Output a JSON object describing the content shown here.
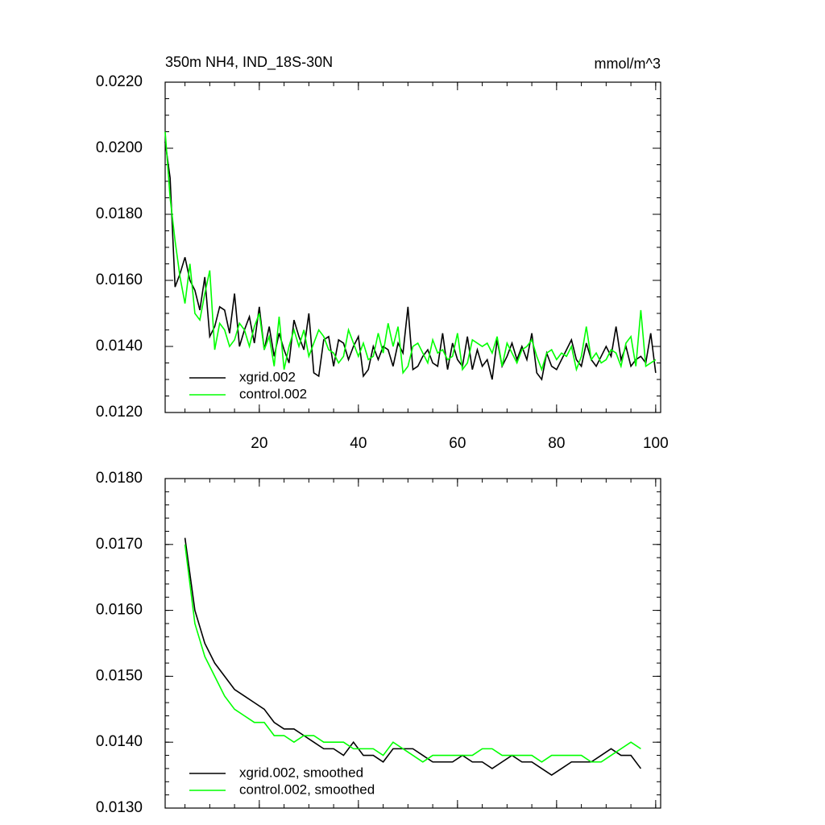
{
  "chart_data": [
    {
      "type": "line",
      "title": "350m NH4, IND_18S-30N",
      "units": "mmol/m^3",
      "legend": "lower left",
      "x": [
        1,
        2,
        3,
        4,
        5,
        6,
        7,
        8,
        9,
        10,
        11,
        12,
        13,
        14,
        15,
        16,
        17,
        18,
        19,
        20,
        21,
        22,
        23,
        24,
        25,
        26,
        27,
        28,
        29,
        30,
        31,
        32,
        33,
        34,
        35,
        36,
        37,
        38,
        39,
        40,
        41,
        42,
        43,
        44,
        45,
        46,
        47,
        48,
        49,
        50,
        51,
        52,
        53,
        54,
        55,
        56,
        57,
        58,
        59,
        60,
        61,
        62,
        63,
        64,
        65,
        66,
        67,
        68,
        69,
        70,
        71,
        72,
        73,
        74,
        75,
        76,
        77,
        78,
        79,
        80,
        81,
        82,
        83,
        84,
        85,
        86,
        87,
        88,
        89,
        90,
        91,
        92,
        93,
        94,
        95,
        96,
        97,
        98,
        99,
        100
      ],
      "series": [
        {
          "name": "xgrid.002",
          "color": "#000000",
          "values": [
            0.0202,
            0.0191,
            0.0158,
            0.0162,
            0.0167,
            0.016,
            0.0157,
            0.0151,
            0.0161,
            0.0143,
            0.0146,
            0.0152,
            0.0151,
            0.0144,
            0.0156,
            0.014,
            0.0145,
            0.0149,
            0.0141,
            0.0152,
            0.0139,
            0.0146,
            0.0137,
            0.0144,
            0.0139,
            0.0135,
            0.0148,
            0.0143,
            0.0139,
            0.015,
            0.0132,
            0.0131,
            0.0142,
            0.0143,
            0.0134,
            0.0142,
            0.0141,
            0.0136,
            0.014,
            0.0143,
            0.0131,
            0.0133,
            0.014,
            0.0136,
            0.014,
            0.0139,
            0.0134,
            0.0141,
            0.0138,
            0.0152,
            0.0133,
            0.0134,
            0.0137,
            0.0139,
            0.0135,
            0.0134,
            0.0144,
            0.0133,
            0.0141,
            0.0136,
            0.0134,
            0.0143,
            0.0133,
            0.0139,
            0.0134,
            0.0136,
            0.013,
            0.0142,
            0.0134,
            0.0137,
            0.0141,
            0.0136,
            0.014,
            0.0136,
            0.0144,
            0.0132,
            0.013,
            0.0138,
            0.0134,
            0.0133,
            0.0136,
            0.0139,
            0.0142,
            0.0136,
            0.0134,
            0.0141,
            0.0136,
            0.0134,
            0.0137,
            0.014,
            0.0137,
            0.0146,
            0.0136,
            0.014,
            0.0134,
            0.0136,
            0.0137,
            0.0135,
            0.0144,
            0.0132
          ]
        },
        {
          "name": "control.002",
          "color": "#00ff00",
          "values": [
            0.0205,
            0.0185,
            0.0172,
            0.0161,
            0.0153,
            0.0165,
            0.015,
            0.0148,
            0.0156,
            0.0163,
            0.0139,
            0.0147,
            0.0145,
            0.014,
            0.0142,
            0.0147,
            0.0145,
            0.014,
            0.0146,
            0.015,
            0.0139,
            0.0143,
            0.0134,
            0.0149,
            0.0133,
            0.014,
            0.0145,
            0.014,
            0.0145,
            0.0137,
            0.0141,
            0.0145,
            0.0143,
            0.0139,
            0.0138,
            0.0135,
            0.0137,
            0.0145,
            0.0141,
            0.0137,
            0.0141,
            0.0136,
            0.0137,
            0.0144,
            0.0138,
            0.0147,
            0.014,
            0.0146,
            0.0132,
            0.0134,
            0.014,
            0.0141,
            0.0138,
            0.0135,
            0.0142,
            0.0138,
            0.0139,
            0.0136,
            0.0137,
            0.0144,
            0.0133,
            0.0135,
            0.0142,
            0.0141,
            0.014,
            0.0141,
            0.0138,
            0.0143,
            0.0134,
            0.0141,
            0.0138,
            0.0135,
            0.0139,
            0.014,
            0.0142,
            0.0137,
            0.0133,
            0.0138,
            0.0139,
            0.0136,
            0.0138,
            0.0137,
            0.014,
            0.0133,
            0.0137,
            0.0146,
            0.0136,
            0.0138,
            0.0135,
            0.0136,
            0.0139,
            0.0138,
            0.0134,
            0.0141,
            0.0143,
            0.0134,
            0.0151,
            0.0134,
            0.0135,
            0.0136
          ]
        }
      ],
      "xlim": [
        1,
        101
      ],
      "ylim": [
        0.012,
        0.022
      ],
      "xticks": [
        20,
        40,
        60,
        80,
        100
      ],
      "show_xtick_labels": true,
      "yticks": [
        {
          "value": 0.012,
          "label": "0.0120"
        },
        {
          "value": 0.014,
          "label": "0.0140"
        },
        {
          "value": 0.016,
          "label": "0.0160"
        },
        {
          "value": 0.018,
          "label": "0.0180"
        },
        {
          "value": 0.02,
          "label": "0.0200"
        },
        {
          "value": 0.022,
          "label": "0.0220"
        }
      ]
    },
    {
      "type": "line",
      "legend": "lower left",
      "x": [
        5,
        7,
        9,
        11,
        13,
        15,
        17,
        19,
        21,
        23,
        25,
        27,
        29,
        31,
        33,
        35,
        37,
        39,
        41,
        43,
        45,
        47,
        49,
        51,
        53,
        55,
        57,
        59,
        61,
        63,
        65,
        67,
        69,
        71,
        73,
        75,
        77,
        79,
        81,
        83,
        85,
        87,
        89,
        91,
        93,
        95,
        97
      ],
      "series": [
        {
          "name": "xgrid.002, smoothed",
          "color": "#000000",
          "values": [
            0.0171,
            0.016,
            0.0155,
            0.0152,
            0.015,
            0.0148,
            0.0147,
            0.0146,
            0.0145,
            0.0143,
            0.0142,
            0.0142,
            0.0141,
            0.014,
            0.0139,
            0.0139,
            0.0138,
            0.014,
            0.0138,
            0.0138,
            0.0137,
            0.0139,
            0.0139,
            0.0139,
            0.0138,
            0.0137,
            0.0137,
            0.0137,
            0.0138,
            0.0137,
            0.0137,
            0.0136,
            0.0137,
            0.0138,
            0.0137,
            0.0137,
            0.0136,
            0.0135,
            0.0136,
            0.0137,
            0.0137,
            0.0137,
            0.0138,
            0.0139,
            0.0138,
            0.0138,
            0.0136
          ]
        },
        {
          "name": "control.002, smoothed",
          "color": "#00ff00",
          "values": [
            0.017,
            0.0158,
            0.0153,
            0.015,
            0.0147,
            0.0145,
            0.0144,
            0.0143,
            0.0143,
            0.0141,
            0.0141,
            0.014,
            0.0141,
            0.0141,
            0.014,
            0.014,
            0.014,
            0.0139,
            0.0139,
            0.0139,
            0.0138,
            0.014,
            0.0139,
            0.0138,
            0.0137,
            0.0138,
            0.0138,
            0.0138,
            0.0138,
            0.0138,
            0.0139,
            0.0139,
            0.0138,
            0.0138,
            0.0138,
            0.0138,
            0.0137,
            0.0138,
            0.0138,
            0.0138,
            0.0138,
            0.0137,
            0.0137,
            0.0138,
            0.0139,
            0.014,
            0.0139
          ]
        }
      ],
      "xlim": [
        1,
        101
      ],
      "ylim": [
        0.013,
        0.018
      ],
      "xticks": [
        20,
        40,
        60,
        80,
        100
      ],
      "show_xtick_labels": false,
      "yticks": [
        {
          "value": 0.013,
          "label": "0.0130"
        },
        {
          "value": 0.014,
          "label": "0.0140"
        },
        {
          "value": 0.015,
          "label": "0.0150"
        },
        {
          "value": 0.016,
          "label": "0.0160"
        },
        {
          "value": 0.017,
          "label": "0.0170"
        },
        {
          "value": 0.018,
          "label": "0.0180"
        }
      ]
    }
  ]
}
